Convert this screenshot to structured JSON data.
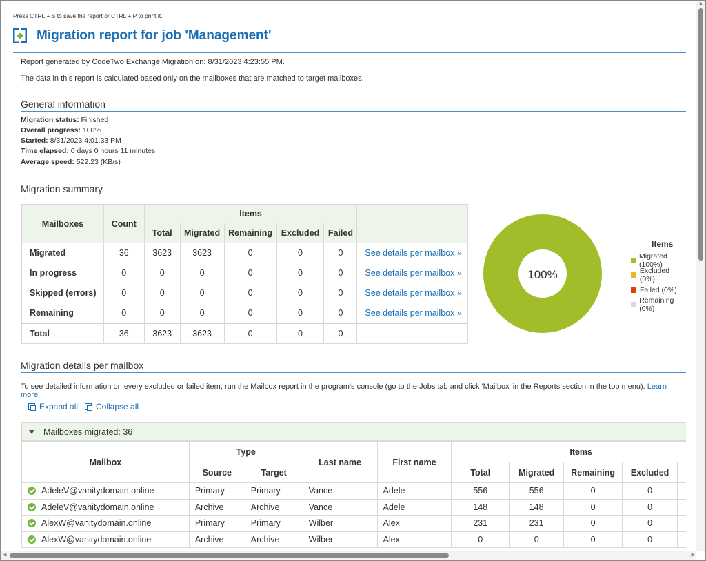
{
  "hint": "Press CTRL + S to save the report or CTRL + P to print it.",
  "title": "Migration report for job 'Management'",
  "generated": {
    "prefix": "Report generated by ",
    "product": "CodeTwo Exchange Migration",
    "suffix": " on: 8/31/2023 4:23:55 PM."
  },
  "note": "The data in this report is calculated based only on the mailboxes that are matched to target mailboxes.",
  "general": {
    "heading": "General information",
    "rows": [
      {
        "label": "Migration status:",
        "value": " Finished"
      },
      {
        "label": "Overall progress:",
        "value": " 100%"
      },
      {
        "label": "Started:",
        "value": " 8/31/2023 4:01:33 PM"
      },
      {
        "label": "Time elapsed:",
        "value": " 0 days 0 hours 11 minutes"
      },
      {
        "label": "Average speed:",
        "value": " 522.23 (KB/s)"
      }
    ]
  },
  "summary": {
    "heading": "Migration summary",
    "col_mailboxes": "Mailboxes",
    "col_count": "Count",
    "col_items": "Items",
    "sub_cols": [
      "Total",
      "Migrated",
      "Remaining",
      "Excluded",
      "Failed"
    ],
    "rows": [
      {
        "label": "Migrated",
        "values": [
          "36",
          "3623",
          "3623",
          "0",
          "0",
          "0"
        ],
        "link": "See details per mailbox »"
      },
      {
        "label": "In progress",
        "values": [
          "0",
          "0",
          "0",
          "0",
          "0",
          "0"
        ],
        "link": "See details per mailbox »"
      },
      {
        "label": "Skipped (errors)",
        "values": [
          "0",
          "0",
          "0",
          "0",
          "0",
          "0"
        ],
        "link": "See details per mailbox »"
      },
      {
        "label": "Remaining",
        "values": [
          "0",
          "0",
          "0",
          "0",
          "0",
          "0"
        ],
        "link": "See details per mailbox »"
      },
      {
        "label": "Total",
        "values": [
          "36",
          "3623",
          "3623",
          "0",
          "0",
          "0"
        ],
        "link": ""
      }
    ]
  },
  "pie": {
    "center_label": "100%",
    "legend_title": "Items",
    "slices": [
      {
        "label": "Migrated (100%)",
        "value": 100,
        "color": "#a2bd2a"
      },
      {
        "label": "Excluded (0%)",
        "value": 0,
        "color": "#f0b429"
      },
      {
        "label": "Failed (0%)",
        "value": 0,
        "color": "#e0400e"
      },
      {
        "label": "Remaining (0%)",
        "value": 0,
        "color": "#d9d9d9"
      }
    ]
  },
  "details": {
    "heading": "Migration details per mailbox",
    "info": "To see detailed information on every excluded or failed item, run the Mailbox report in the program's console (go to the Jobs tab and click 'Mailbox' in the Reports section in the top menu).",
    "learn_more": "Learn more.",
    "expand_all": "Expand all",
    "collapse_all": "Collapse all",
    "group_label": "Mailboxes migrated: 36",
    "headers": {
      "mailbox": "Mailbox",
      "type": "Type",
      "source": "Source",
      "target": "Target",
      "last_name": "Last name",
      "first_name": "First name",
      "items": "Items",
      "total": "Total",
      "migrated": "Migrated",
      "remaining": "Remaining",
      "excluded": "Excluded",
      "failed_partial": "F"
    },
    "rows": [
      {
        "mailbox": "AdeleV@vanitydomain.online",
        "source": "Primary",
        "target": "Primary",
        "last": "Vance",
        "first": "Adele",
        "total": "556",
        "migrated": "556",
        "remaining": "0",
        "excluded": "0"
      },
      {
        "mailbox": "AdeleV@vanitydomain.online",
        "source": "Archive",
        "target": "Archive",
        "last": "Vance",
        "first": "Adele",
        "total": "148",
        "migrated": "148",
        "remaining": "0",
        "excluded": "0"
      },
      {
        "mailbox": "AlexW@vanitydomain.online",
        "source": "Primary",
        "target": "Primary",
        "last": "Wilber",
        "first": "Alex",
        "total": "231",
        "migrated": "231",
        "remaining": "0",
        "excluded": "0"
      },
      {
        "mailbox": "AlexW@vanitydomain.online",
        "source": "Archive",
        "target": "Archive",
        "last": "Wilber",
        "first": "Alex",
        "total": "0",
        "migrated": "0",
        "remaining": "0",
        "excluded": "0"
      }
    ]
  }
}
